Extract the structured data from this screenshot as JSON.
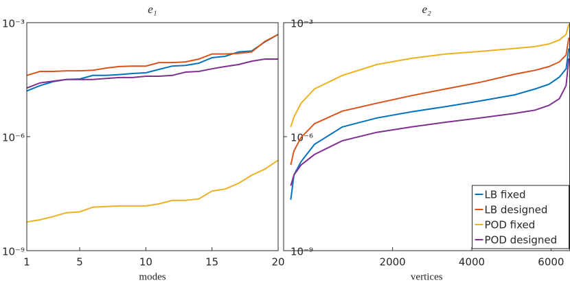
{
  "chart_data": [
    {
      "type": "line",
      "title": "e₁",
      "xlabel": "modes",
      "yscale": "log",
      "xlim": [
        1,
        20
      ],
      "xticks": [
        1,
        5,
        10,
        15,
        20
      ],
      "ylim": [
        1e-09,
        0.001
      ],
      "yticks": [
        {
          "value": 1e-09,
          "label": "10⁻⁹"
        },
        {
          "value": 1e-06,
          "label": "10⁻⁶"
        },
        {
          "value": 0.001,
          "label": "10⁻³"
        }
      ],
      "x": [
        1,
        2,
        3,
        4,
        5,
        6,
        7,
        8,
        9,
        10,
        11,
        12,
        13,
        14,
        15,
        16,
        17,
        18,
        19,
        20
      ],
      "series": [
        {
          "name": "LB fixed",
          "color": "#0072bd",
          "values": [
            1.6e-05,
            2.2e-05,
            2.8e-05,
            3.2e-05,
            3.3e-05,
            4.1e-05,
            4.1e-05,
            4.3e-05,
            4.6e-05,
            4.8e-05,
            5.9e-05,
            7.2e-05,
            7.5e-05,
            8.6e-05,
            0.00012,
            0.00013,
            0.00017,
            0.00018,
            0.00031,
            0.00049
          ]
        },
        {
          "name": "LB designed",
          "color": "#d95319",
          "values": [
            4.1e-05,
            5.2e-05,
            5.2e-05,
            5.4e-05,
            5.4e-05,
            5.6e-05,
            6.4e-05,
            7e-05,
            7.2e-05,
            7.2e-05,
            8.9e-05,
            8.9e-05,
            9.3e-05,
            0.00011,
            0.00015,
            0.00015,
            0.000155,
            0.00017,
            0.00032,
            0.00049
          ]
        },
        {
          "name": "POD fixed",
          "color": "#edb120",
          "values": [
            5.7e-09,
            6.5e-09,
            7.9e-09,
            1e-08,
            1.05e-08,
            1.4e-08,
            1.45e-08,
            1.5e-08,
            1.5e-08,
            1.5e-08,
            1.7e-08,
            2.1e-08,
            2.1e-08,
            2.3e-08,
            3.7e-08,
            4.2e-08,
            5.9e-08,
            9.7e-08,
            1.4e-07,
            2.4e-07
          ]
        },
        {
          "name": "POD designed",
          "color": "#7e2f8e",
          "values": [
            1.9e-05,
            2.6e-05,
            2.9e-05,
            3.2e-05,
            3.2e-05,
            3.2e-05,
            3.4e-05,
            3.6e-05,
            3.6e-05,
            3.9e-05,
            3.9e-05,
            4.1e-05,
            5e-05,
            5.2e-05,
            6.1e-05,
            7e-05,
            7.9e-05,
            9.7e-05,
            0.00011,
            0.00011
          ]
        }
      ]
    },
    {
      "type": "line",
      "title": "e₂",
      "xlabel": "vertices",
      "yscale": "log",
      "legend": "southeast",
      "xlim": [
        -750,
        6470
      ],
      "xticks": [
        2000,
        4000,
        6000
      ],
      "ylim": [
        1e-09,
        0.001
      ],
      "yticks": [
        {
          "value": 1e-09,
          "label": "10⁻⁹"
        },
        {
          "value": 1e-06,
          "label": "10⁻⁶"
        },
        {
          "value": 0.001,
          "label": "10⁻³"
        }
      ],
      "x": [
        -570,
        -490,
        -310,
        30,
        730,
        1600,
        2470,
        3340,
        4210,
        5080,
        5600,
        5950,
        6210,
        6380,
        6450
      ],
      "series": [
        {
          "name": "LB fixed",
          "color": "#0072bd",
          "values": [
            2.2e-08,
            9.8e-08,
            2.2e-07,
            6.3e-07,
            1.8e-06,
            3.1e-06,
            4.5e-06,
            6.2e-06,
            8.7e-06,
            1.26e-05,
            1.8e-05,
            2.4e-05,
            3.7e-05,
            6.1e-05,
            0.00021
          ]
        },
        {
          "name": "LB designed",
          "color": "#d95319",
          "values": [
            1.8e-07,
            4.2e-07,
            9.5e-07,
            2.2e-06,
            4.7e-06,
            7.6e-06,
            1.2e-05,
            1.8e-05,
            2.7e-05,
            4.4e-05,
            5.6e-05,
            7e-05,
            9.3e-05,
            0.00014,
            0.0004
          ]
        },
        {
          "name": "POD fixed",
          "color": "#edb120",
          "values": [
            1.8e-06,
            3.3e-06,
            7.6e-06,
            1.8e-05,
            4.1e-05,
            7.9e-05,
            0.000115,
            0.00015,
            0.000175,
            0.00021,
            0.000235,
            0.000275,
            0.00035,
            0.00049,
            0.00092
          ]
        },
        {
          "name": "POD designed",
          "color": "#7e2f8e",
          "values": [
            5.1e-08,
            9.8e-08,
            1.8e-07,
            3.4e-07,
            7.8e-07,
            1.3e-06,
            1.8e-06,
            2.4e-06,
            3.1e-06,
            4.1e-06,
            5e-06,
            6.7e-06,
            1e-05,
            2.2e-05,
            0.000115
          ]
        }
      ]
    }
  ]
}
